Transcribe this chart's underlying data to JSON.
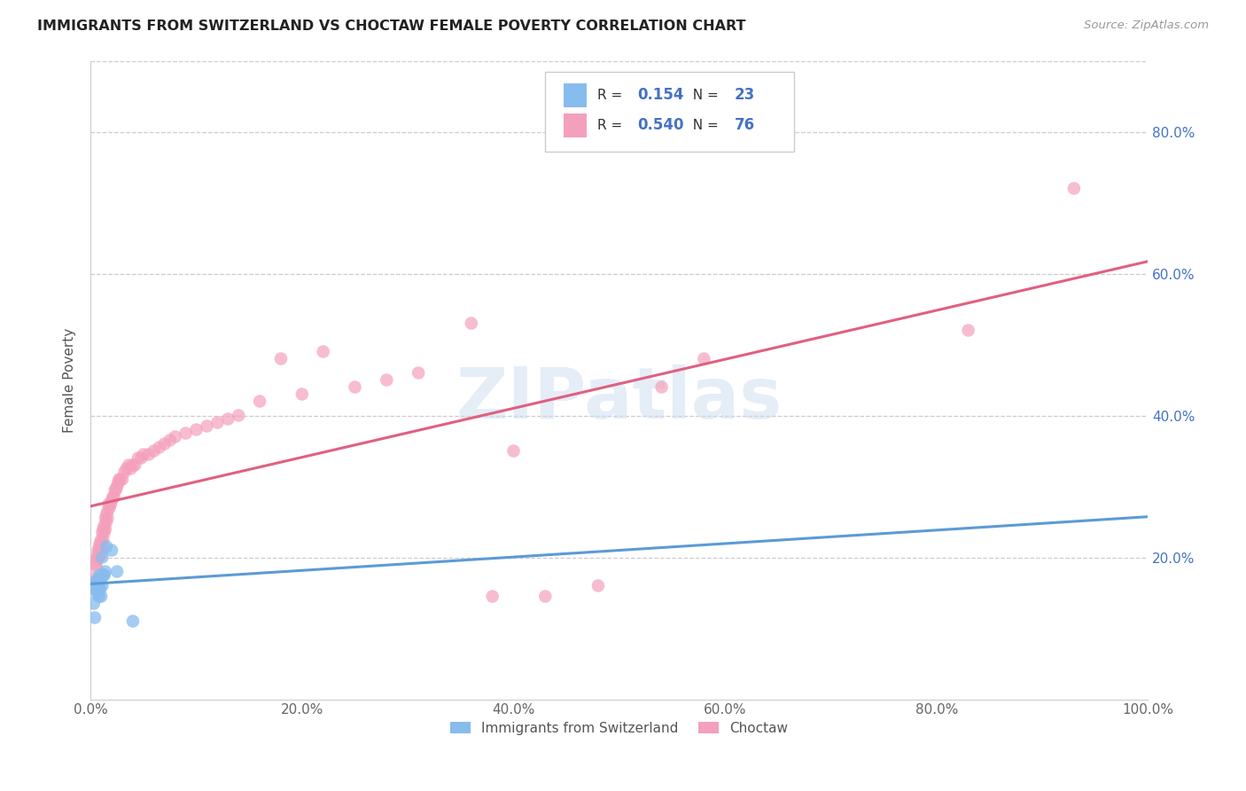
{
  "title": "IMMIGRANTS FROM SWITZERLAND VS CHOCTAW FEMALE POVERTY CORRELATION CHART",
  "source": "Source: ZipAtlas.com",
  "ylabel": "Female Poverty",
  "xlim": [
    0,
    1.0
  ],
  "ylim": [
    0,
    0.9
  ],
  "ytick_vals": [
    0.0,
    0.2,
    0.4,
    0.6,
    0.8
  ],
  "ytick_labels": [
    "",
    "20.0%",
    "40.0%",
    "60.0%",
    "80.0%"
  ],
  "xtick_vals": [
    0.0,
    0.2,
    0.4,
    0.6,
    0.8,
    1.0
  ],
  "xtick_labels": [
    "0.0%",
    "20.0%",
    "40.0%",
    "60.0%",
    "80.0%",
    "100.0%"
  ],
  "legend_R1": "0.154",
  "legend_N1": "23",
  "legend_R2": "0.540",
  "legend_N2": "76",
  "color_swiss": "#87BCEE",
  "color_choctaw": "#F4A0BC",
  "trendline_swiss_color": "#5B9BD5",
  "trendline_choctaw_color": "#E06080",
  "watermark": "ZIPatlas",
  "swiss_x": [
    0.003,
    0.004,
    0.005,
    0.005,
    0.006,
    0.006,
    0.007,
    0.007,
    0.008,
    0.008,
    0.009,
    0.009,
    0.01,
    0.01,
    0.011,
    0.011,
    0.012,
    0.013,
    0.014,
    0.015,
    0.02,
    0.025,
    0.04
  ],
  "swiss_y": [
    0.135,
    0.115,
    0.155,
    0.165,
    0.15,
    0.165,
    0.155,
    0.17,
    0.145,
    0.16,
    0.155,
    0.175,
    0.145,
    0.17,
    0.16,
    0.2,
    0.175,
    0.175,
    0.18,
    0.215,
    0.21,
    0.18,
    0.11
  ],
  "choctaw_x": [
    0.003,
    0.004,
    0.005,
    0.005,
    0.006,
    0.006,
    0.007,
    0.007,
    0.008,
    0.008,
    0.009,
    0.009,
    0.01,
    0.01,
    0.011,
    0.011,
    0.012,
    0.012,
    0.013,
    0.013,
    0.014,
    0.014,
    0.015,
    0.015,
    0.016,
    0.016,
    0.017,
    0.018,
    0.019,
    0.02,
    0.021,
    0.022,
    0.023,
    0.024,
    0.025,
    0.026,
    0.027,
    0.028,
    0.03,
    0.032,
    0.034,
    0.036,
    0.038,
    0.04,
    0.042,
    0.045,
    0.048,
    0.05,
    0.055,
    0.06,
    0.065,
    0.07,
    0.075,
    0.08,
    0.09,
    0.1,
    0.11,
    0.12,
    0.13,
    0.14,
    0.16,
    0.18,
    0.2,
    0.22,
    0.25,
    0.28,
    0.31,
    0.36,
    0.38,
    0.4,
    0.43,
    0.48,
    0.54,
    0.58,
    0.83,
    0.93
  ],
  "choctaw_y": [
    0.17,
    0.165,
    0.19,
    0.195,
    0.185,
    0.2,
    0.205,
    0.21,
    0.2,
    0.215,
    0.21,
    0.22,
    0.205,
    0.225,
    0.22,
    0.235,
    0.225,
    0.24,
    0.235,
    0.245,
    0.24,
    0.255,
    0.25,
    0.26,
    0.255,
    0.265,
    0.275,
    0.27,
    0.275,
    0.28,
    0.285,
    0.285,
    0.295,
    0.295,
    0.3,
    0.305,
    0.31,
    0.31,
    0.31,
    0.32,
    0.325,
    0.33,
    0.325,
    0.33,
    0.33,
    0.34,
    0.34,
    0.345,
    0.345,
    0.35,
    0.355,
    0.36,
    0.365,
    0.37,
    0.375,
    0.38,
    0.385,
    0.39,
    0.395,
    0.4,
    0.42,
    0.48,
    0.43,
    0.49,
    0.44,
    0.45,
    0.46,
    0.53,
    0.145,
    0.35,
    0.145,
    0.16,
    0.44,
    0.48,
    0.52,
    0.72
  ]
}
